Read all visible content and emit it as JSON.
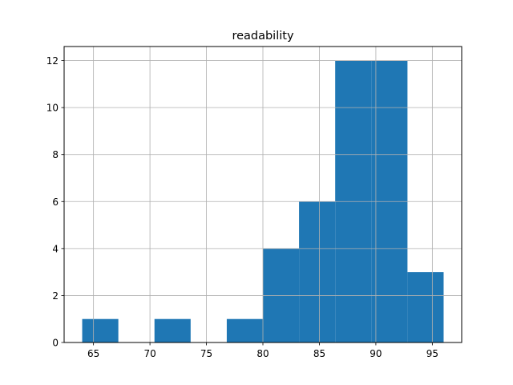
{
  "chart_data": {
    "type": "bar",
    "title": "readability",
    "xlabel": "",
    "ylabel": "",
    "bins": [
      {
        "x0": 64.0,
        "x1": 67.2,
        "count": 1
      },
      {
        "x0": 67.2,
        "x1": 70.4,
        "count": 0
      },
      {
        "x0": 70.4,
        "x1": 73.6,
        "count": 1
      },
      {
        "x0": 73.6,
        "x1": 76.8,
        "count": 0
      },
      {
        "x0": 76.8,
        "x1": 80.0,
        "count": 1
      },
      {
        "x0": 80.0,
        "x1": 83.2,
        "count": 4
      },
      {
        "x0": 83.2,
        "x1": 86.4,
        "count": 6
      },
      {
        "x0": 86.4,
        "x1": 89.6,
        "count": 12
      },
      {
        "x0": 89.6,
        "x1": 92.8,
        "count": 12
      },
      {
        "x0": 92.8,
        "x1": 96.0,
        "count": 3
      }
    ],
    "xlim": [
      62.4,
      97.6
    ],
    "ylim": [
      0,
      12.6
    ],
    "xticks": [
      "65",
      "70",
      "75",
      "80",
      "85",
      "90",
      "95"
    ],
    "yticks": [
      "0",
      "2",
      "4",
      "6",
      "8",
      "10",
      "12"
    ],
    "grid": true,
    "bar_color": "#1f77b4",
    "grid_color": "#b0b0b0"
  }
}
